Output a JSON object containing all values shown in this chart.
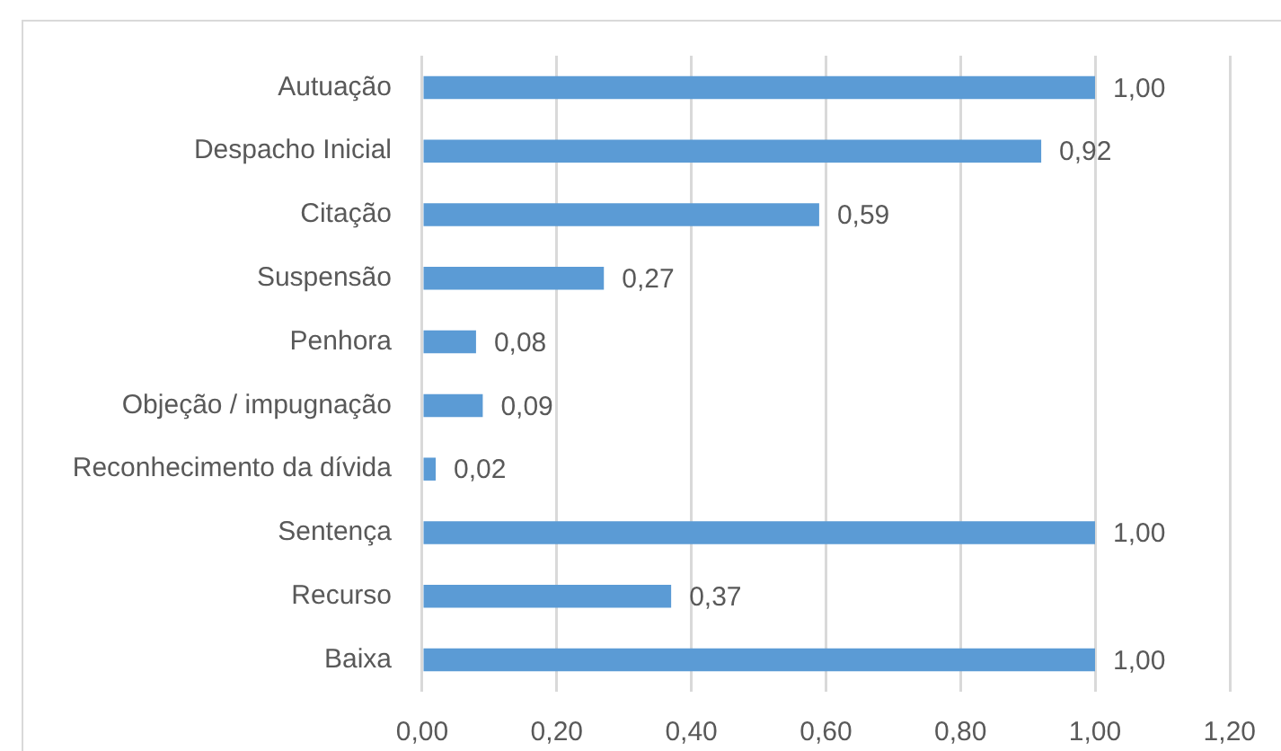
{
  "chart_data": {
    "type": "bar",
    "orientation": "horizontal",
    "categories": [
      "Autuação",
      "Despacho Inicial",
      "Citação",
      "Suspensão",
      "Penhora",
      "Objeção / impugnação",
      "Reconhecimento da dívida",
      "Sentença",
      "Recurso",
      "Baixa"
    ],
    "values": [
      1.0,
      0.92,
      0.59,
      0.27,
      0.08,
      0.09,
      0.02,
      1.0,
      0.37,
      1.0
    ],
    "value_labels": [
      "1,00",
      "0,92",
      "0,59",
      "0,27",
      "0,08",
      "0,09",
      "0,02",
      "1,00",
      "0,37",
      "1,00"
    ],
    "color": "#5b9bd5",
    "xlim": [
      0,
      1.2
    ],
    "xticks": [
      {
        "value": 0,
        "label": "0,00"
      },
      {
        "value": 0.2,
        "label": "0,20"
      },
      {
        "value": 0.4,
        "label": "0,40"
      },
      {
        "value": 0.6,
        "label": "0,60"
      },
      {
        "value": 0.8,
        "label": "0,80"
      },
      {
        "value": 1.0,
        "label": "1,00"
      },
      {
        "value": 1.2,
        "label": "1,20"
      }
    ],
    "grid": "x"
  }
}
